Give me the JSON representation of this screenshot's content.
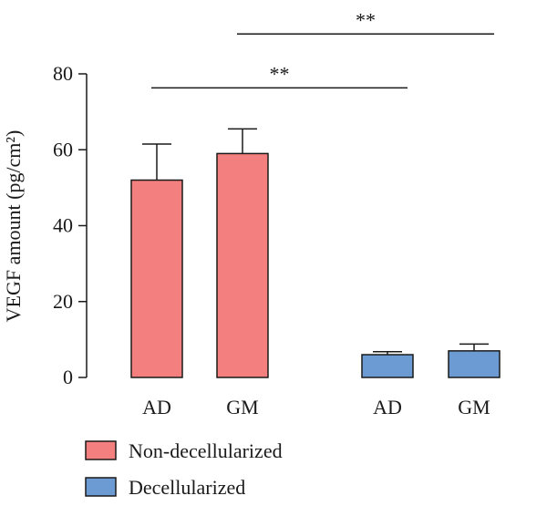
{
  "chart_data": {
    "type": "bar",
    "ylabel": "VEGF amount (pg/cm²)",
    "ylim": [
      0,
      80
    ],
    "yticks": [
      0,
      20,
      40,
      60,
      80
    ],
    "grid": false,
    "legend_placement": "bottom-left",
    "groups": [
      {
        "name": "Non-decellularized",
        "color": "#f47f7f",
        "categories": [
          "AD",
          "GM"
        ]
      },
      {
        "name": "Decellularized",
        "color": "#6b9bd2",
        "categories": [
          "AD",
          "GM"
        ]
      }
    ],
    "bars": [
      {
        "group": 0,
        "category": "AD",
        "value": 52,
        "error": 9.5
      },
      {
        "group": 0,
        "category": "GM",
        "value": 59,
        "error": 6.5
      },
      {
        "group": 1,
        "category": "AD",
        "value": 6,
        "error": 0.8
      },
      {
        "group": 1,
        "category": "GM",
        "value": 7,
        "error": 1.8
      }
    ],
    "significance": [
      {
        "from": 0,
        "to": 2,
        "y": 76.3,
        "label": "**"
      },
      {
        "from": 1,
        "to": 3,
        "y": 90.5,
        "label": "**"
      }
    ]
  }
}
